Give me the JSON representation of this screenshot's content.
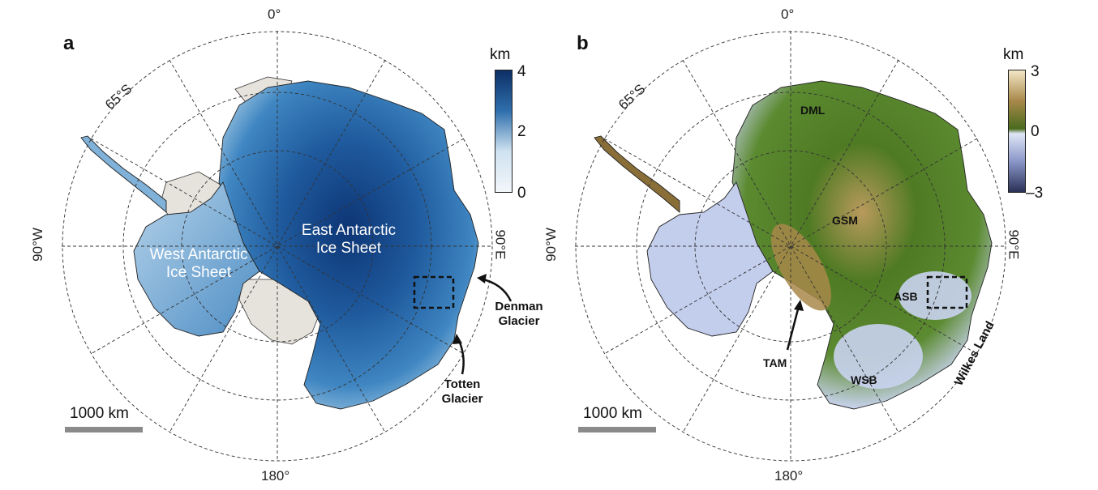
{
  "panels": [
    {
      "label": "a",
      "colorbar": {
        "unit": "km",
        "ticks": [
          "4",
          "2",
          "0"
        ],
        "colors": [
          "#0d2f66",
          "#2f6fac",
          "#cfe2f0"
        ]
      },
      "scalebar": "1000 km",
      "regions": [
        "East Antarctic",
        "Ice Sheet",
        "West Antarctic",
        "Ice Sheet"
      ],
      "annotations": {
        "denman": [
          "Denman",
          "Glacier"
        ],
        "totten": [
          "Totten",
          "Glacier"
        ]
      }
    },
    {
      "label": "b",
      "colorbar": {
        "unit": "km",
        "ticks": [
          "3",
          "0",
          "–3"
        ],
        "colors": [
          "#f3e6c6",
          "#4a6b1e",
          "#dfe6f6",
          "#2a3156"
        ]
      },
      "scalebar": "1000 km",
      "regions": [
        "DML",
        "GSM",
        "ASB",
        "TAM",
        "WSB",
        "Wilkes Land"
      ]
    }
  ],
  "graticule": {
    "top": "0°",
    "bottom": "180°",
    "left": "90°W",
    "right": "90°E",
    "lat": "65°S"
  },
  "colors": {
    "ice_surface": "#2a64a8",
    "ice_shelf": "#e6e2dc",
    "bed_above": "#4f7a24",
    "bed_below": "#c9d3ef"
  }
}
